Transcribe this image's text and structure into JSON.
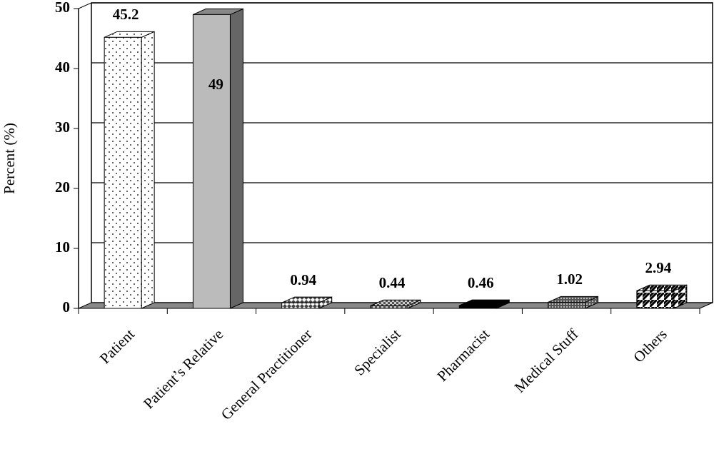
{
  "chart_data": {
    "type": "bar3d",
    "ylabel": "Percent (%)",
    "categories": [
      "Patient",
      "Patient’s Relative",
      "General Practitioner",
      "Specialist",
      "Pharmacist",
      "Medical Stuff",
      "Others"
    ],
    "values": [
      45.2,
      49,
      0.94,
      0.44,
      0.46,
      1.02,
      2.94
    ],
    "ylim": [
      0,
      50
    ],
    "yticks": [
      0,
      10,
      20,
      30,
      40,
      50
    ],
    "grid": true
  }
}
